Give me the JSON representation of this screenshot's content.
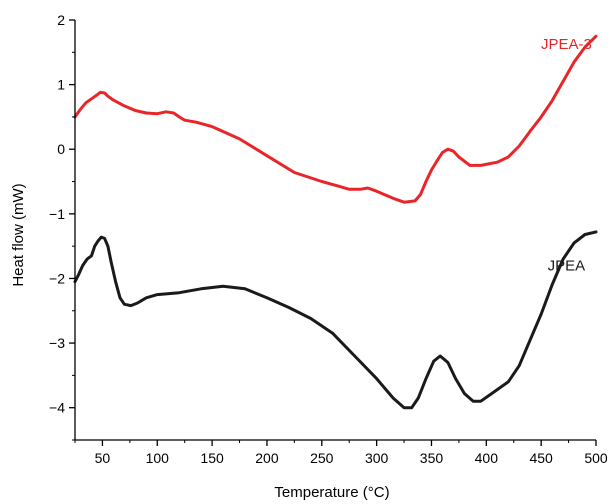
{
  "chart_data": {
    "type": "line",
    "title": "",
    "xlabel": "Temperature (°C)",
    "ylabel": "Heat flow (mW)",
    "xlim": [
      25,
      500
    ],
    "ylim": [
      -4.5,
      2
    ],
    "x_ticks": [
      50,
      100,
      150,
      200,
      250,
      300,
      350,
      400,
      450,
      500
    ],
    "x_tick_labels": [
      "50",
      "100",
      "150",
      "200",
      "250",
      "300",
      "350",
      "400",
      "450",
      "500"
    ],
    "y_ticks": [
      2,
      1,
      0,
      -1,
      -2,
      -3,
      -4
    ],
    "y_tick_labels": [
      "2",
      "1",
      "0",
      "−1",
      "−2",
      "−3",
      "−4"
    ],
    "grid": false,
    "series": [
      {
        "name": "JPEA-3",
        "color": "#e8262a",
        "points": [
          [
            25,
            0.5
          ],
          [
            30,
            0.62
          ],
          [
            35,
            0.72
          ],
          [
            40,
            0.78
          ],
          [
            45,
            0.84
          ],
          [
            48,
            0.88
          ],
          [
            52,
            0.87
          ],
          [
            55,
            0.82
          ],
          [
            60,
            0.76
          ],
          [
            70,
            0.67
          ],
          [
            80,
            0.6
          ],
          [
            90,
            0.56
          ],
          [
            100,
            0.55
          ],
          [
            108,
            0.58
          ],
          [
            115,
            0.56
          ],
          [
            120,
            0.5
          ],
          [
            125,
            0.45
          ],
          [
            135,
            0.42
          ],
          [
            150,
            0.35
          ],
          [
            175,
            0.16
          ],
          [
            200,
            -0.1
          ],
          [
            225,
            -0.36
          ],
          [
            250,
            -0.5
          ],
          [
            265,
            -0.57
          ],
          [
            275,
            -0.62
          ],
          [
            285,
            -0.62
          ],
          [
            292,
            -0.6
          ],
          [
            300,
            -0.65
          ],
          [
            315,
            -0.76
          ],
          [
            325,
            -0.82
          ],
          [
            335,
            -0.8
          ],
          [
            340,
            -0.7
          ],
          [
            345,
            -0.5
          ],
          [
            350,
            -0.32
          ],
          [
            355,
            -0.18
          ],
          [
            360,
            -0.05
          ],
          [
            365,
            0.0
          ],
          [
            370,
            -0.03
          ],
          [
            375,
            -0.12
          ],
          [
            385,
            -0.25
          ],
          [
            395,
            -0.25
          ],
          [
            410,
            -0.2
          ],
          [
            420,
            -0.12
          ],
          [
            430,
            0.05
          ],
          [
            440,
            0.28
          ],
          [
            450,
            0.5
          ],
          [
            460,
            0.75
          ],
          [
            470,
            1.05
          ],
          [
            480,
            1.35
          ],
          [
            490,
            1.58
          ],
          [
            500,
            1.75
          ]
        ]
      },
      {
        "name": "JPEA",
        "color": "#1a1a1a",
        "points": [
          [
            25,
            -2.05
          ],
          [
            28,
            -1.95
          ],
          [
            32,
            -1.8
          ],
          [
            36,
            -1.7
          ],
          [
            40,
            -1.65
          ],
          [
            43,
            -1.5
          ],
          [
            46,
            -1.42
          ],
          [
            49,
            -1.36
          ],
          [
            52,
            -1.38
          ],
          [
            55,
            -1.5
          ],
          [
            58,
            -1.75
          ],
          [
            62,
            -2.05
          ],
          [
            66,
            -2.3
          ],
          [
            70,
            -2.4
          ],
          [
            76,
            -2.42
          ],
          [
            82,
            -2.38
          ],
          [
            90,
            -2.3
          ],
          [
            100,
            -2.25
          ],
          [
            120,
            -2.22
          ],
          [
            140,
            -2.16
          ],
          [
            160,
            -2.12
          ],
          [
            180,
            -2.16
          ],
          [
            200,
            -2.3
          ],
          [
            220,
            -2.45
          ],
          [
            240,
            -2.62
          ],
          [
            260,
            -2.85
          ],
          [
            280,
            -3.2
          ],
          [
            300,
            -3.55
          ],
          [
            315,
            -3.85
          ],
          [
            325,
            -4.0
          ],
          [
            332,
            -4.0
          ],
          [
            338,
            -3.85
          ],
          [
            345,
            -3.55
          ],
          [
            352,
            -3.28
          ],
          [
            358,
            -3.2
          ],
          [
            365,
            -3.3
          ],
          [
            372,
            -3.55
          ],
          [
            380,
            -3.78
          ],
          [
            388,
            -3.9
          ],
          [
            395,
            -3.9
          ],
          [
            405,
            -3.78
          ],
          [
            420,
            -3.6
          ],
          [
            430,
            -3.35
          ],
          [
            440,
            -2.95
          ],
          [
            450,
            -2.55
          ],
          [
            460,
            -2.1
          ],
          [
            470,
            -1.7
          ],
          [
            480,
            -1.45
          ],
          [
            490,
            -1.32
          ],
          [
            500,
            -1.28
          ]
        ]
      }
    ],
    "annotations": [
      {
        "text": "JPEA-3",
        "x": 473,
        "y": 1.55,
        "color": "#e8262a"
      },
      {
        "text": "JPEA",
        "x": 473,
        "y": -1.88,
        "color": "#1a1a1a"
      }
    ]
  }
}
